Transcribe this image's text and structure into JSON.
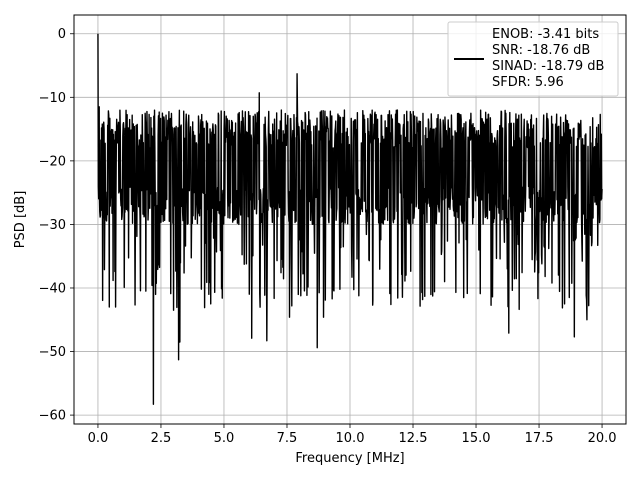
{
  "chart_data": {
    "type": "line",
    "title": "",
    "xlabel": "Frequency [MHz]",
    "ylabel": "PSD [dB]",
    "xlim": [
      -0.95,
      20.95
    ],
    "ylim": [
      -61.4,
      2.95
    ],
    "xticks": [
      0.0,
      2.5,
      5.0,
      7.5,
      10.0,
      12.5,
      15.0,
      17.5,
      20.0
    ],
    "xtick_labels": [
      "0.0",
      "2.5",
      "5.0",
      "7.5",
      "10.0",
      "12.5",
      "15.0",
      "17.5",
      "20.0"
    ],
    "yticks": [
      0,
      -10,
      -20,
      -30,
      -40,
      -50,
      -60
    ],
    "ytick_labels": [
      "0",
      "−10",
      "−20",
      "−30",
      "−40",
      "−50",
      "−60"
    ],
    "grid": true,
    "legend_position": "top-right",
    "legend_lines": [
      "ENOB: -3.41 bits",
      "SNR: -18.76 dB",
      "SINAD: -18.79 dB",
      "SFDR: 5.96"
    ],
    "series": [
      {
        "color": "#000000",
        "x_range": [
          0.0,
          20.0
        ],
        "points": 1400,
        "baseline_db": -21.5,
        "noise_band_db": [
          -30,
          -12
        ],
        "spikes": [
          {
            "x": 0.0,
            "y": 0.0
          },
          {
            "x": 0.05,
            "y": -11.5
          },
          {
            "x": 2.2,
            "y": -58.3
          },
          {
            "x": 3.2,
            "y": -51.3
          },
          {
            "x": 3.25,
            "y": -48.5
          },
          {
            "x": 6.1,
            "y": -47.9
          },
          {
            "x": 6.7,
            "y": -48.3
          },
          {
            "x": 7.9,
            "y": -6.3
          },
          {
            "x": 8.7,
            "y": -49.4
          },
          {
            "x": 8.95,
            "y": -44.6
          },
          {
            "x": 16.3,
            "y": -47.1
          },
          {
            "x": 18.9,
            "y": -47.7
          },
          {
            "x": 0.45,
            "y": -43.0
          },
          {
            "x": 0.7,
            "y": -43.0
          },
          {
            "x": 1.9,
            "y": -40.5
          },
          {
            "x": 3.0,
            "y": -43.5
          },
          {
            "x": 4.4,
            "y": -41.0
          },
          {
            "x": 7.6,
            "y": -44.6
          },
          {
            "x": 9.6,
            "y": -40.2
          },
          {
            "x": 10.9,
            "y": -42.7
          },
          {
            "x": 14.2,
            "y": -40.7
          },
          {
            "x": 18.7,
            "y": -41.5
          },
          {
            "x": 19.4,
            "y": -45.0
          },
          {
            "x": 6.4,
            "y": -9.3
          }
        ]
      }
    ]
  }
}
